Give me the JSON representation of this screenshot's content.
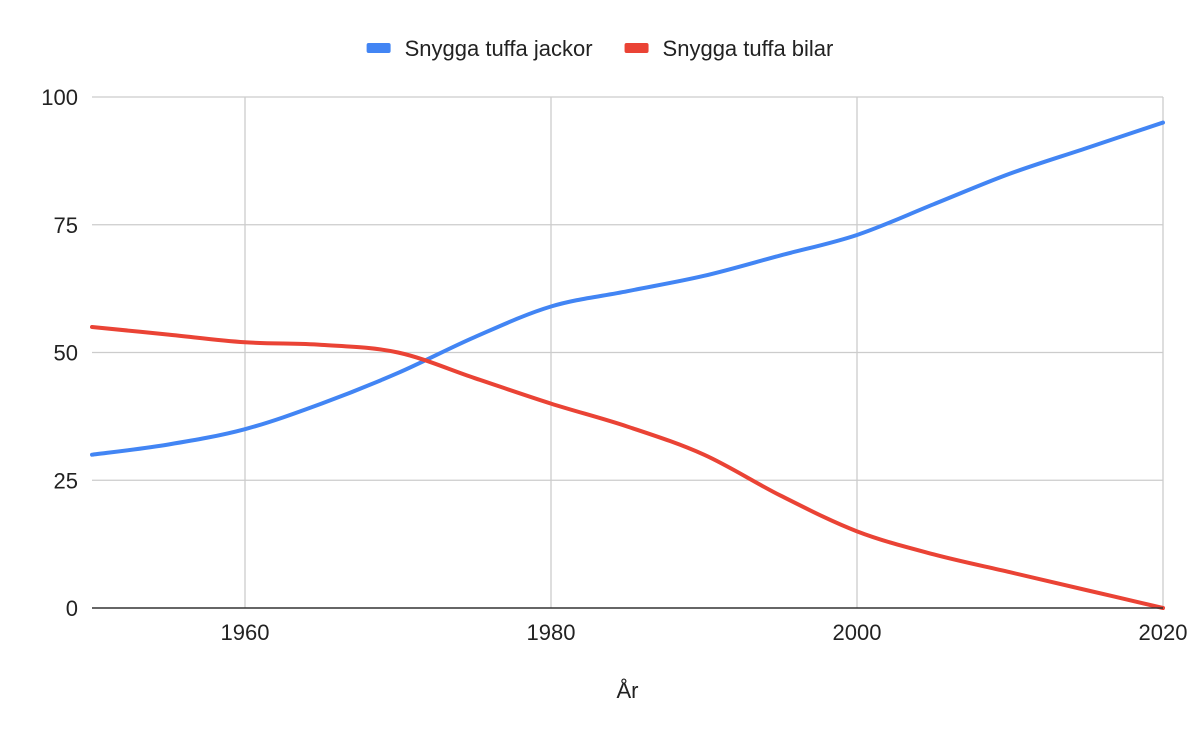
{
  "chart_data": {
    "type": "line",
    "xlabel": "År",
    "ylabel": "",
    "xlim": [
      1950,
      2020
    ],
    "ylim": [
      0,
      100
    ],
    "x_ticks": [
      1960,
      1980,
      2000,
      2020
    ],
    "y_ticks": [
      0,
      25,
      50,
      75,
      100
    ],
    "grid": true,
    "legend_position": "top",
    "series": [
      {
        "name": "Snygga tuffa jackor",
        "color": "#4285f4",
        "x": [
          1950,
          1955,
          1960,
          1965,
          1970,
          1975,
          1980,
          1985,
          1990,
          1995,
          2000,
          2005,
          2010,
          2015,
          2020
        ],
        "values": [
          30,
          32,
          35,
          40,
          46,
          53,
          59,
          62,
          65,
          69,
          73,
          79,
          85,
          90,
          95
        ]
      },
      {
        "name": "Snygga tuffa bilar",
        "color": "#ea4335",
        "x": [
          1950,
          1955,
          1960,
          1965,
          1970,
          1975,
          1980,
          1985,
          1990,
          1995,
          2000,
          2005,
          2010,
          2015,
          2020
        ],
        "values": [
          55,
          53.5,
          52,
          51.5,
          50,
          45,
          40,
          35.5,
          30,
          22,
          15,
          10.5,
          7,
          3.5,
          0
        ]
      }
    ]
  }
}
